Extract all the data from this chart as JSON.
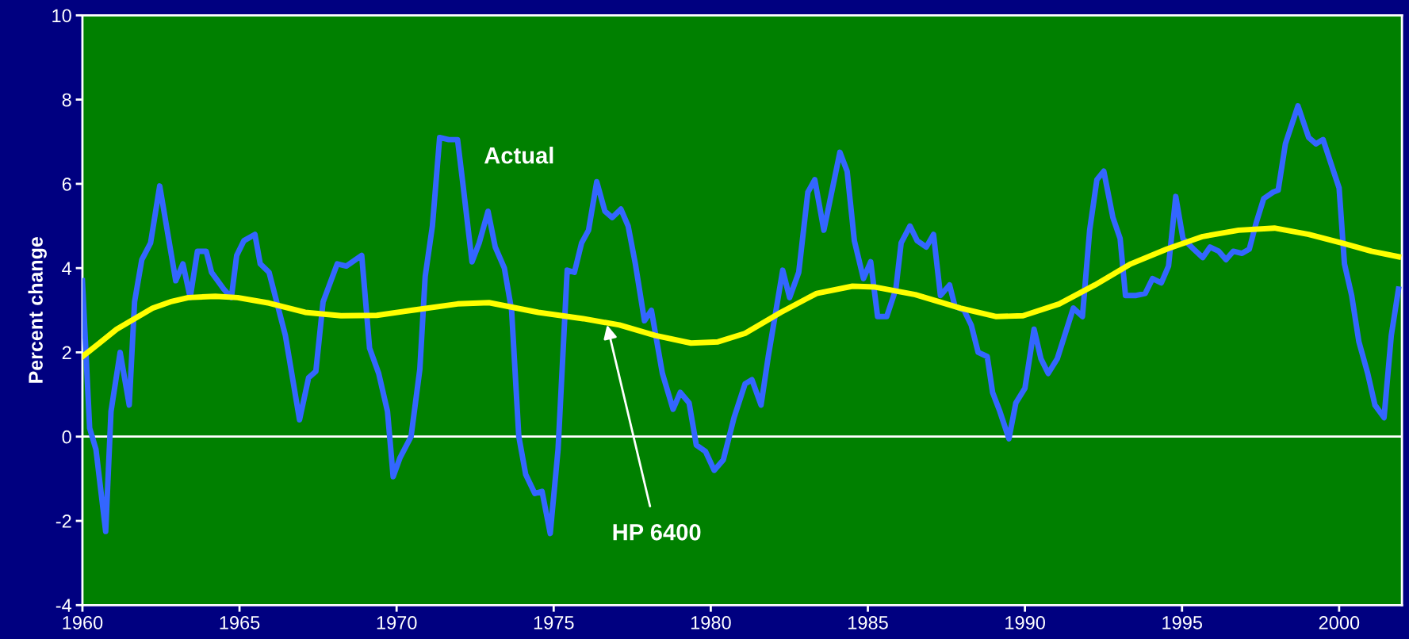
{
  "chart_data": {
    "type": "line",
    "ylabel": "Percent change",
    "xlim": [
      1960,
      2002
    ],
    "xticks": [
      1960,
      1965,
      1970,
      1975,
      1980,
      1985,
      1990,
      1995,
      2000
    ],
    "ylim": [
      -4,
      10
    ],
    "yticks": [
      -4,
      -2,
      0,
      2,
      4,
      6,
      8,
      10
    ],
    "grid": false,
    "legend": false,
    "marker": "none",
    "line_style": "solid",
    "series": [
      {
        "color": "#3366ff",
        "x": [
          1960.0,
          1960.23,
          1960.43,
          1960.74,
          1960.91,
          1961.2,
          1961.49,
          1961.66,
          1961.89,
          1962.17,
          1962.46,
          1962.97,
          1963.2,
          1963.43,
          1963.66,
          1963.94,
          1964.11,
          1964.5,
          1964.74,
          1964.91,
          1965.14,
          1965.49,
          1965.66,
          1965.94,
          1966.46,
          1966.91,
          1967.2,
          1967.43,
          1967.66,
          1968.11,
          1968.4,
          1968.89,
          1969.14,
          1969.43,
          1969.71,
          1969.89,
          1970.11,
          1970.46,
          1970.74,
          1970.91,
          1971.14,
          1971.37,
          1971.66,
          1971.94,
          1972.11,
          1972.4,
          1972.63,
          1972.91,
          1973.14,
          1973.43,
          1973.66,
          1973.89,
          1974.11,
          1974.4,
          1974.63,
          1974.89,
          1975.14,
          1975.43,
          1975.66,
          1975.89,
          1976.11,
          1976.37,
          1976.63,
          1976.86,
          1977.14,
          1977.37,
          1977.6,
          1977.89,
          1978.11,
          1978.46,
          1978.8,
          1979.03,
          1979.31,
          1979.54,
          1979.83,
          1980.11,
          1980.4,
          1980.74,
          1981.09,
          1981.31,
          1981.6,
          1981.83,
          1982.29,
          1982.51,
          1982.8,
          1983.09,
          1983.31,
          1983.6,
          1984.11,
          1984.34,
          1984.57,
          1984.86,
          1985.09,
          1985.31,
          1985.6,
          1985.89,
          1986.06,
          1986.34,
          1986.57,
          1986.86,
          1987.09,
          1987.31,
          1987.6,
          1987.77,
          1988.06,
          1988.29,
          1988.51,
          1988.8,
          1988.97,
          1989.2,
          1989.49,
          1989.71,
          1990.0,
          1990.29,
          1990.51,
          1990.74,
          1991.03,
          1991.37,
          1991.54,
          1991.83,
          1992.06,
          1992.29,
          1992.51,
          1992.8,
          1993.03,
          1993.2,
          1993.54,
          1993.83,
          1994.06,
          1994.34,
          1994.57,
          1994.8,
          1995.03,
          1995.37,
          1995.66,
          1995.89,
          1996.17,
          1996.4,
          1996.63,
          1996.91,
          1997.14,
          1997.37,
          1997.6,
          1997.89,
          1998.06,
          1998.29,
          1998.69,
          1999.03,
          1999.26,
          1999.49,
          1999.71,
          2000.0,
          2000.17,
          2000.4,
          2000.63,
          2000.91,
          2001.14,
          2001.43,
          2001.66,
          2001.89
        ],
        "values": [
          3.7,
          0.2,
          -0.3,
          -2.25,
          0.6,
          2.0,
          0.75,
          3.2,
          4.2,
          4.6,
          5.95,
          3.7,
          4.1,
          3.3,
          4.4,
          4.4,
          3.9,
          3.5,
          3.3,
          4.3,
          4.65,
          4.8,
          4.1,
          3.9,
          2.4,
          0.4,
          1.4,
          1.55,
          3.2,
          4.1,
          4.05,
          4.3,
          2.1,
          1.5,
          0.6,
          -0.95,
          -0.5,
          0.0,
          1.6,
          3.8,
          5.0,
          7.1,
          7.05,
          7.05,
          6.0,
          4.15,
          4.6,
          5.35,
          4.5,
          4.0,
          3.0,
          0.0,
          -0.9,
          -1.35,
          -1.3,
          -2.3,
          -0.3,
          3.95,
          3.9,
          4.6,
          4.9,
          6.05,
          5.35,
          5.2,
          5.4,
          5.0,
          4.1,
          2.75,
          3.0,
          1.5,
          0.65,
          1.05,
          0.8,
          -0.2,
          -0.35,
          -0.8,
          -0.55,
          0.45,
          1.25,
          1.35,
          0.75,
          1.9,
          3.95,
          3.3,
          3.9,
          5.8,
          6.1,
          4.9,
          6.75,
          6.3,
          4.65,
          3.75,
          4.15,
          2.85,
          2.85,
          3.5,
          4.6,
          5.0,
          4.65,
          4.5,
          4.8,
          3.35,
          3.6,
          3.1,
          3.0,
          2.65,
          2.0,
          1.9,
          1.05,
          0.6,
          -0.05,
          0.8,
          1.15,
          2.55,
          1.85,
          1.5,
          1.85,
          2.65,
          3.05,
          2.85,
          4.9,
          6.1,
          6.3,
          5.2,
          4.7,
          3.35,
          3.35,
          3.4,
          3.75,
          3.65,
          4.05,
          5.7,
          4.7,
          4.45,
          4.25,
          4.5,
          4.4,
          4.2,
          4.4,
          4.35,
          4.45,
          5.1,
          5.65,
          5.8,
          5.85,
          6.95,
          7.85,
          7.1,
          6.95,
          7.05,
          6.55,
          5.9,
          4.1,
          3.35,
          2.25,
          1.5,
          0.75,
          0.45,
          2.4,
          3.5
        ]
      },
      {
        "color": "#ffff00",
        "x": [
          1960.0,
          1960.51,
          1961.09,
          1961.66,
          1962.23,
          1962.8,
          1963.37,
          1964.23,
          1964.94,
          1965.94,
          1967.09,
          1968.23,
          1969.37,
          1970.51,
          1971.94,
          1972.94,
          1974.51,
          1975.94,
          1977.09,
          1978.23,
          1979.37,
          1980.23,
          1981.09,
          1982.23,
          1983.37,
          1984.51,
          1985.23,
          1986.51,
          1987.94,
          1989.09,
          1989.94,
          1991.09,
          1992.23,
          1993.37,
          1994.51,
          1995.66,
          1996.8,
          1997.94,
          1999.03,
          2000.17,
          2001.03,
          2001.89
        ],
        "values": [
          1.9,
          2.2,
          2.55,
          2.8,
          3.05,
          3.2,
          3.3,
          3.33,
          3.3,
          3.17,
          2.95,
          2.87,
          2.88,
          3.0,
          3.15,
          3.18,
          2.95,
          2.8,
          2.65,
          2.4,
          2.22,
          2.25,
          2.45,
          2.95,
          3.4,
          3.57,
          3.55,
          3.37,
          3.05,
          2.85,
          2.87,
          3.15,
          3.6,
          4.1,
          4.45,
          4.75,
          4.9,
          4.95,
          4.8,
          4.58,
          4.4,
          4.27
        ]
      }
    ],
    "ref_lines": [
      {
        "axis": "y",
        "value": 0,
        "color": "#ffffff",
        "line_style": "solid"
      }
    ],
    "annotations": [
      "Actual",
      {
        "text": "HP 6400",
        "x": 1976.7,
        "y": 2.65
      }
    ]
  }
}
